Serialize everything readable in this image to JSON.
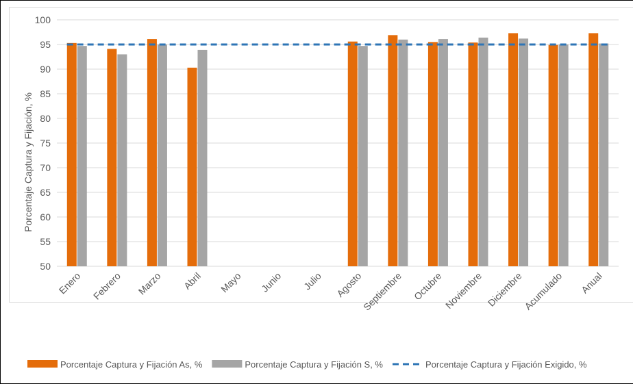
{
  "chart_data": {
    "type": "bar",
    "ylabel": "Porcentaje Captura y Fijación, %",
    "ylim": [
      50,
      100
    ],
    "yticks": [
      50,
      55,
      60,
      65,
      70,
      75,
      80,
      85,
      90,
      95,
      100
    ],
    "grid": true,
    "legend_position": "bottom",
    "categories": [
      "Enero",
      "Febrero",
      "Marzo",
      "Abril",
      "Mayo",
      "Junio",
      "Julio",
      "Agosto",
      "Septiembre",
      "Octubre",
      "Noviembre",
      "Diciembre",
      "Acumulado",
      "Anual"
    ],
    "series": [
      {
        "name": "Porcentaje Captura y Fijación As, %",
        "type": "bar",
        "color": "#E46C0A",
        "values": [
          95.3,
          94.1,
          96.1,
          90.3,
          null,
          null,
          null,
          95.6,
          96.9,
          95.5,
          95.4,
          97.3,
          94.9,
          97.3
        ]
      },
      {
        "name": "Porcentaje Captura y Fijación S, %",
        "type": "bar",
        "color": "#A5A5A5",
        "values": [
          94.7,
          93.0,
          95.0,
          93.9,
          null,
          null,
          null,
          94.7,
          96.0,
          96.1,
          96.4,
          96.2,
          95.0,
          95.2
        ]
      },
      {
        "name": "Porcentaje Captura y Fijación Exigido, %",
        "type": "line",
        "style": "dashed",
        "color": "#2E75B6",
        "value": 95
      }
    ]
  }
}
